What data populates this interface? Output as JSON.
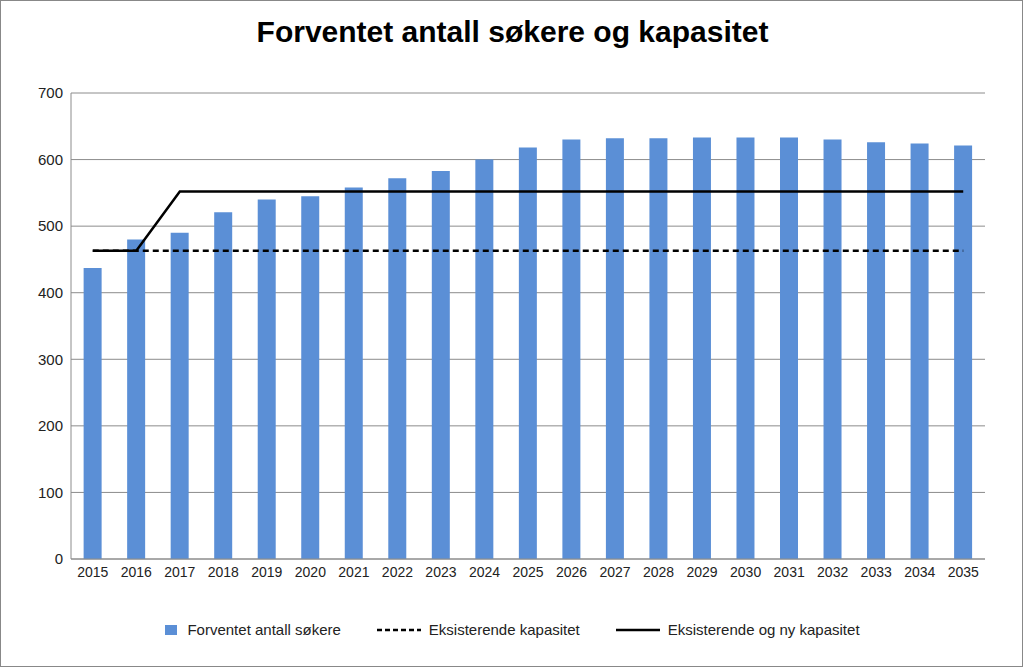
{
  "chart_data": {
    "type": "bar",
    "title": "Forventet antall søkere og kapasitet",
    "categories": [
      "2015",
      "2016",
      "2017",
      "2018",
      "2019",
      "2020",
      "2021",
      "2022",
      "2023",
      "2024",
      "2025",
      "2026",
      "2027",
      "2028",
      "2029",
      "2030",
      "2031",
      "2032",
      "2033",
      "2034",
      "2035"
    ],
    "series": [
      {
        "name": "Forventet antall søkere",
        "type": "bar",
        "color": "#5b8fd6",
        "values": [
          437,
          480,
          490,
          521,
          540,
          545,
          558,
          572,
          583,
          600,
          618,
          630,
          632,
          632,
          633,
          633,
          633,
          630,
          626,
          624,
          621
        ]
      },
      {
        "name": "Eksisterende kapasitet",
        "type": "line",
        "line_style": "dashed",
        "color": "#000000",
        "values": [
          463,
          463,
          463,
          463,
          463,
          463,
          463,
          463,
          463,
          463,
          463,
          463,
          463,
          463,
          463,
          463,
          463,
          463,
          463,
          463,
          463
        ]
      },
      {
        "name": "Eksisterende og ny kapasitet",
        "type": "line",
        "line_style": "solid",
        "color": "#000000",
        "values": [
          463,
          463,
          552,
          552,
          552,
          552,
          552,
          552,
          552,
          552,
          552,
          552,
          552,
          552,
          552,
          552,
          552,
          552,
          552,
          552,
          552
        ]
      }
    ],
    "ylim": [
      0,
      700
    ],
    "yticks": [
      0,
      100,
      200,
      300,
      400,
      500,
      600,
      700
    ],
    "grid": true,
    "legend": "bottom"
  }
}
